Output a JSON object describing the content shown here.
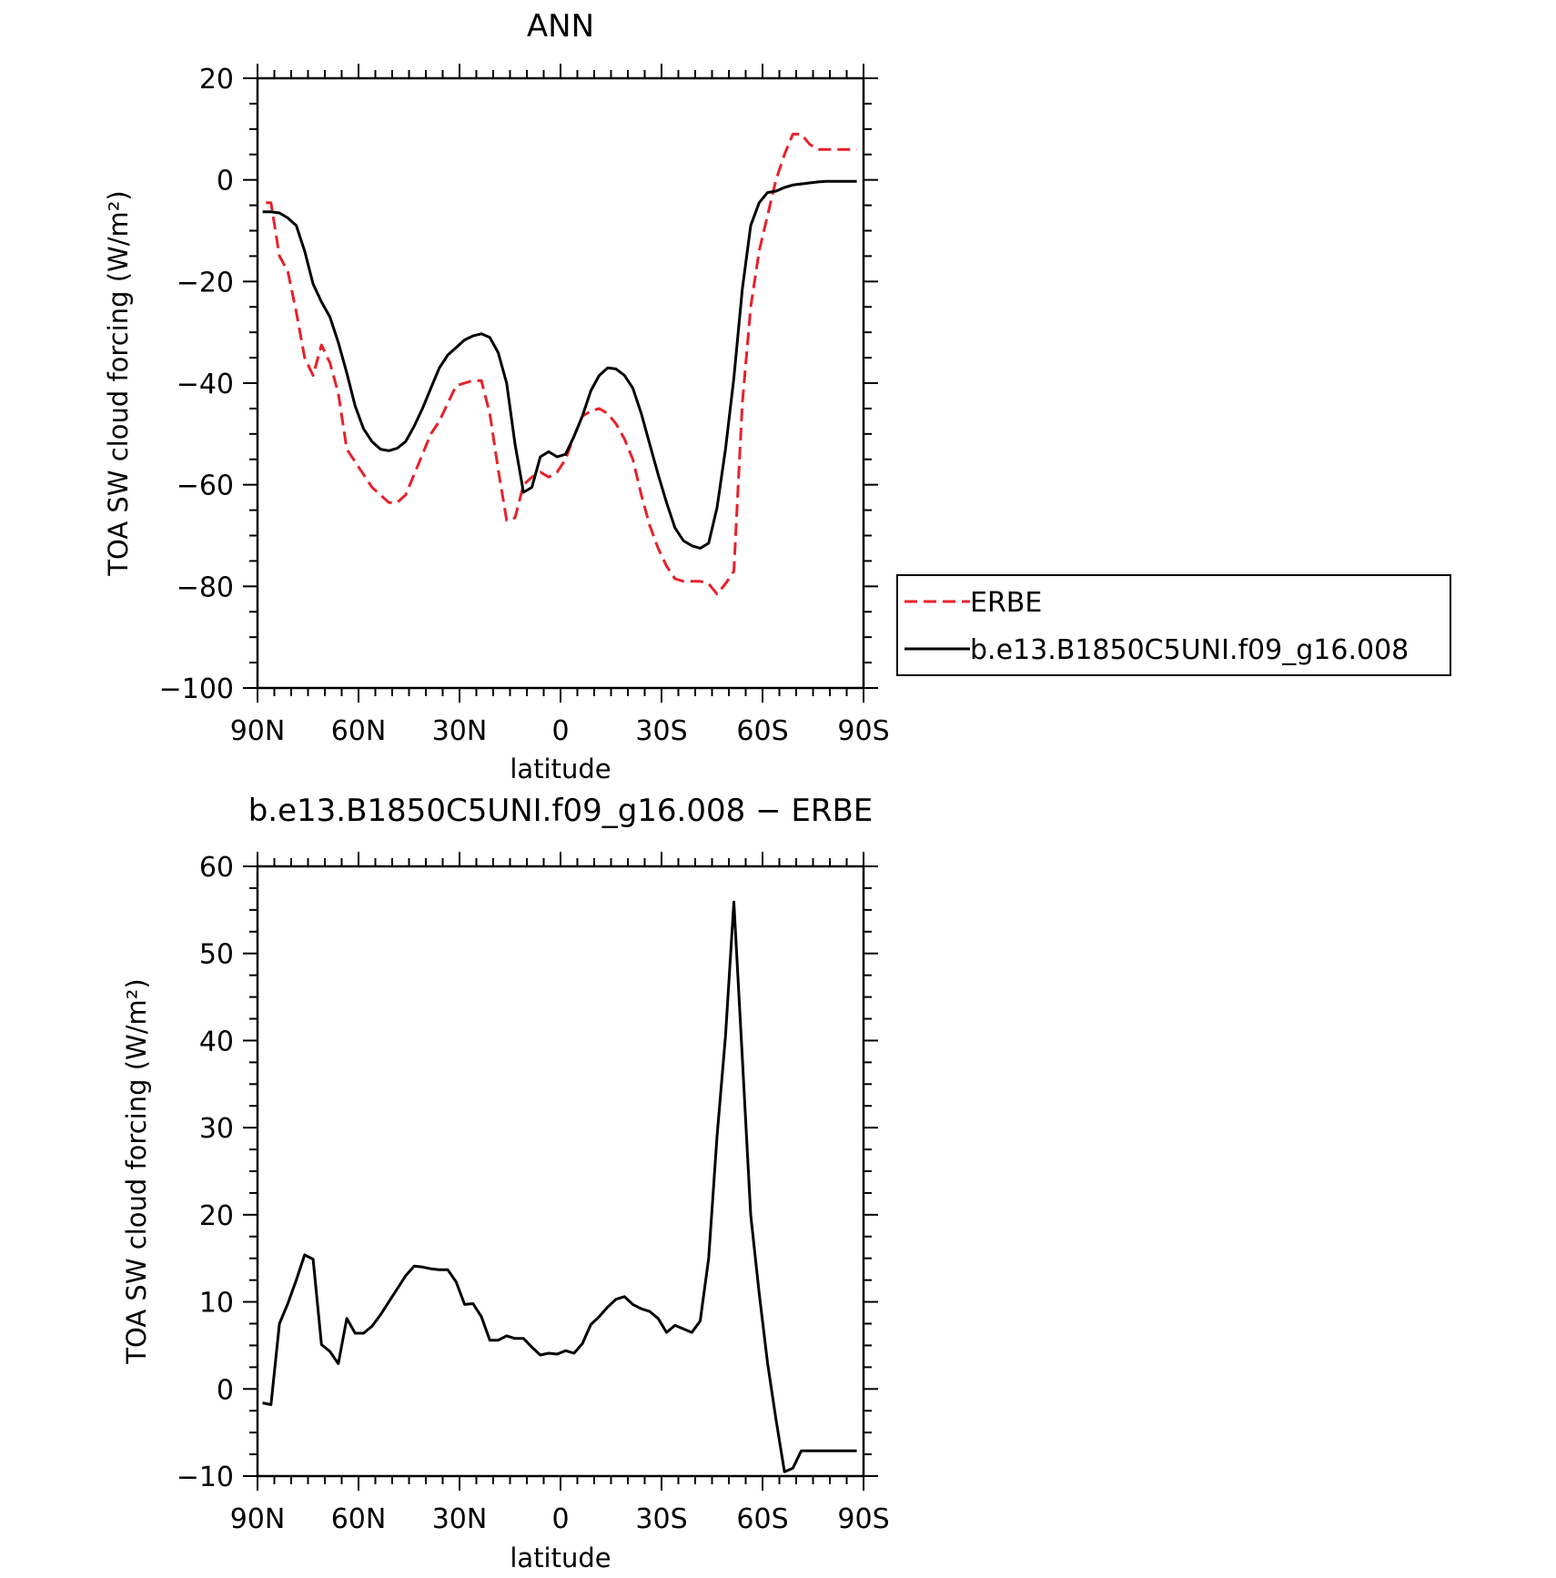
{
  "colors": {
    "erbe": "#e8202a",
    "model": "#000000",
    "axis": "#000000"
  },
  "charts": [
    {
      "type": "line",
      "title": "ANN",
      "xlabel": "latitude",
      "ylabel": "TOA SW cloud forcing (W/m²)",
      "xlim": [
        90,
        -90
      ],
      "ylim": [
        -100,
        20
      ],
      "xticks": [
        90,
        60,
        30,
        0,
        -30,
        -60,
        -90
      ],
      "xtick_labels": [
        "90N",
        "60N",
        "30N",
        "0",
        "30S",
        "60S",
        "90S"
      ],
      "yticks": [
        -100,
        -80,
        -60,
        -40,
        -20,
        0,
        20
      ],
      "ytick_labels": [
        "−100",
        "−80",
        "−60",
        "−40",
        "−20",
        "0",
        "20"
      ],
      "legend": {
        "placement": "right",
        "entries": [
          "ERBE",
          "b.e13.B1850C5UNI.f09_g16.008"
        ]
      },
      "series": [
        {
          "name": "ERBE",
          "style": "dashed",
          "color": "#e8202a",
          "x": [
            87.5,
            86,
            83.5,
            81,
            78.5,
            76,
            73.5,
            71,
            68.5,
            66,
            63.5,
            61,
            58.5,
            56,
            53.5,
            51,
            48.5,
            46,
            43.5,
            41,
            38.5,
            36,
            33.5,
            31,
            28.5,
            26,
            23.5,
            21,
            18.5,
            16,
            13.5,
            11,
            8.5,
            6,
            3.5,
            1,
            -1.5,
            -4,
            -6.5,
            -9,
            -11.5,
            -14,
            -16.5,
            -19,
            -21.5,
            -24,
            -26.5,
            -29,
            -31.5,
            -34,
            -36.5,
            -39,
            -41.5,
            -44,
            -46.5,
            -49,
            -51.5,
            -54,
            -56.5,
            -59,
            -61.5,
            -64,
            -66.5,
            -69,
            -71.5,
            -74,
            -76.5,
            -79,
            -81.5,
            -84,
            -86.5,
            -88
          ],
          "y": [
            -4.5,
            -4.5,
            -15,
            -18,
            -26,
            -35,
            -38.5,
            -32.5,
            -36,
            -42,
            -53,
            -55.5,
            -58,
            -60.5,
            -62,
            -63.5,
            -63.5,
            -62,
            -58,
            -54,
            -50,
            -47.5,
            -44,
            -40.5,
            -40,
            -39.5,
            -39.5,
            -46,
            -57,
            -67,
            -66.5,
            -60,
            -58.5,
            -57.5,
            -58.5,
            -57.5,
            -55,
            -50.5,
            -46.5,
            -45.5,
            -45,
            -46,
            -48,
            -51,
            -55,
            -62,
            -68,
            -72.5,
            -76,
            -78.5,
            -79,
            -79,
            -79,
            -79.5,
            -81.5,
            -79.5,
            -77,
            -44,
            -25,
            -14,
            -7,
            0,
            5,
            9,
            9,
            7,
            6,
            6,
            6,
            6,
            6,
            6
          ]
        },
        {
          "name": "b.e13.B1850C5UNI.f09_g16.008",
          "style": "solid",
          "color": "#000000",
          "x": [
            88.5,
            86,
            83.5,
            81,
            78.5,
            76,
            73.5,
            71,
            68.5,
            66,
            63.5,
            61,
            58.5,
            56,
            53.5,
            51,
            48.5,
            46,
            43.5,
            41,
            38.5,
            36,
            33.5,
            31,
            28.5,
            26,
            23.5,
            21,
            18.5,
            16,
            13.5,
            11,
            8.5,
            6,
            3.5,
            1,
            -1.5,
            -4,
            -6.5,
            -9,
            -11.5,
            -14,
            -16.5,
            -19,
            -21.5,
            -24,
            -26.5,
            -29,
            -31.5,
            -34,
            -36.5,
            -39,
            -41.5,
            -44,
            -46.5,
            -49,
            -51.5,
            -54,
            -56.5,
            -59,
            -61.5,
            -64,
            -66.5,
            -69,
            -71.5,
            -74,
            -76.5,
            -79,
            -81.5,
            -84,
            -86.5,
            -88
          ],
          "y": [
            -6.3,
            -6.3,
            -6.5,
            -7.5,
            -9,
            -14,
            -20.5,
            -24,
            -27,
            -32,
            -38,
            -44.5,
            -49,
            -51.5,
            -53,
            -53.3,
            -52.8,
            -51.5,
            -48.5,
            -45,
            -41,
            -37,
            -34.5,
            -33,
            -31.5,
            -30.7,
            -30.3,
            -31,
            -34,
            -40,
            -52,
            -61.5,
            -60.5,
            -54.5,
            -53.5,
            -54.5,
            -54,
            -50.5,
            -46.5,
            -41.5,
            -38.5,
            -37,
            -37.2,
            -38.5,
            -41,
            -46,
            -52,
            -58,
            -63.5,
            -68.5,
            -71,
            -72,
            -72.5,
            -71.5,
            -64.5,
            -53,
            -39,
            -21.5,
            -9,
            -4.5,
            -2.5,
            -2.2,
            -1.5,
            -1,
            -0.8,
            -0.6,
            -0.4,
            -0.3,
            -0.3,
            -0.3,
            -0.3,
            -0.3
          ]
        }
      ]
    },
    {
      "type": "line",
      "title": "b.e13.B1850C5UNI.f09_g16.008 − ERBE",
      "xlabel": "latitude",
      "ylabel": "TOA SW cloud forcing (W/m²)",
      "xlim": [
        90,
        -90
      ],
      "ylim": [
        -10,
        60
      ],
      "xticks": [
        90,
        60,
        30,
        0,
        -30,
        -60,
        -90
      ],
      "xtick_labels": [
        "90N",
        "60N",
        "30N",
        "0",
        "30S",
        "60S",
        "90S"
      ],
      "yticks": [
        -10,
        0,
        10,
        20,
        30,
        40,
        50,
        60
      ],
      "ytick_labels": [
        "−10",
        "0",
        "10",
        "20",
        "30",
        "40",
        "50",
        "60"
      ],
      "series": [
        {
          "style": "solid",
          "color": "#000000",
          "x": [
            88.5,
            86,
            83.5,
            81,
            78.5,
            76,
            73.5,
            71,
            68.5,
            66,
            63.5,
            61,
            58.5,
            56,
            53.5,
            51,
            48.5,
            46,
            43.5,
            41,
            38.5,
            36,
            33.5,
            31,
            28.5,
            26,
            23.5,
            21,
            18.5,
            16,
            13.5,
            11,
            8.5,
            6,
            3.5,
            1,
            -1.5,
            -4,
            -6.5,
            -9,
            -11.5,
            -14,
            -16.5,
            -19,
            -21.5,
            -24,
            -26.5,
            -29,
            -31.5,
            -34,
            -36.5,
            -39,
            -41.5,
            -44,
            -46.5,
            -49,
            -51.5,
            -54,
            -56.5,
            -59,
            -61.5,
            -64,
            -66.5,
            -69,
            -71.5,
            -74,
            -76.5,
            -79,
            -81.5,
            -84,
            -86.5,
            -88
          ],
          "y": [
            -1.6,
            -1.8,
            7.5,
            9.8,
            12.5,
            15.4,
            14.9,
            5.1,
            4.3,
            2.9,
            8.1,
            6.4,
            6.4,
            7.2,
            8.5,
            10,
            11.5,
            13,
            14.1,
            14,
            13.8,
            13.7,
            13.7,
            12.3,
            9.7,
            9.8,
            8.3,
            5.6,
            5.6,
            6.1,
            5.8,
            5.8,
            4.8,
            3.9,
            4.1,
            4,
            4.4,
            4.1,
            5.2,
            7.4,
            8.3,
            9.4,
            10.3,
            10.6,
            9.7,
            9.2,
            8.9,
            8.1,
            6.5,
            7.3,
            6.9,
            6.5,
            7.8,
            15,
            29,
            40.5,
            55.9,
            38,
            20,
            11,
            3,
            -3.5,
            -9.5,
            -9.1,
            -7.1,
            -7.1,
            -7.1,
            -7.1,
            -7.1,
            -7.1,
            -7.1,
            -7.1
          ]
        }
      ]
    }
  ]
}
